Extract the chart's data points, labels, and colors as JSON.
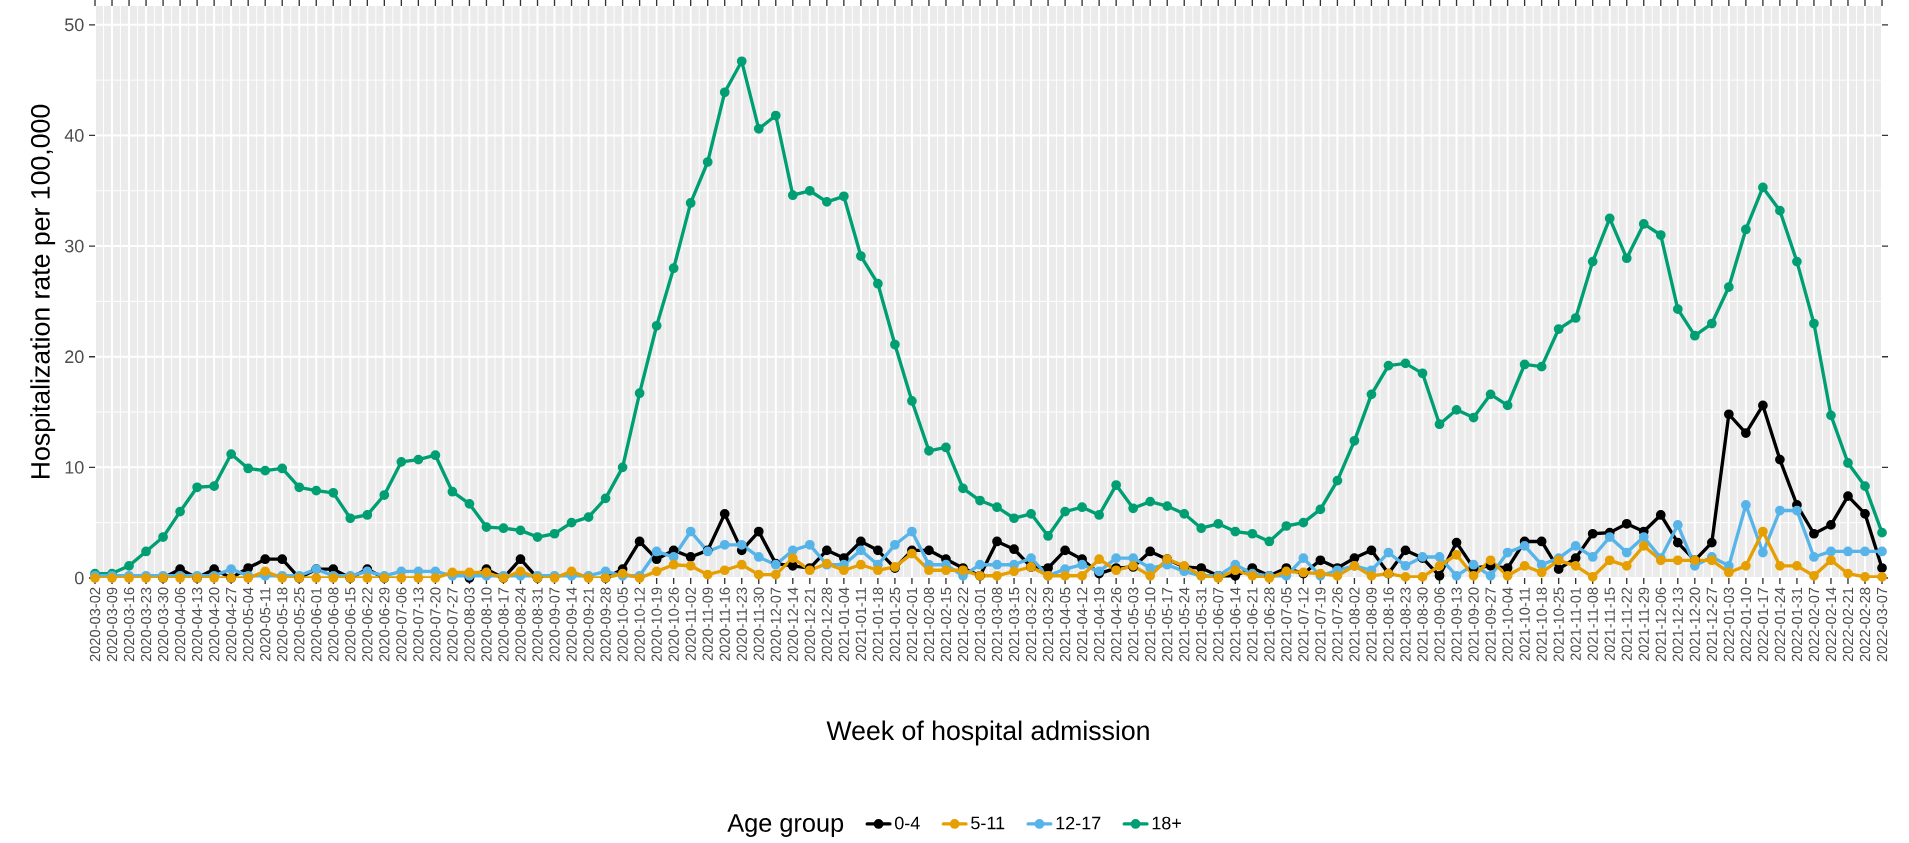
{
  "chart_data": {
    "type": "line",
    "xlabel": "Week of hospital admission",
    "ylabel": "Hospitalization rate per 100,000",
    "legend_title": "Age group",
    "categories": [
      "2020-03-02",
      "2020-03-09",
      "2020-03-16",
      "2020-03-23",
      "2020-03-30",
      "2020-04-06",
      "2020-04-13",
      "2020-04-20",
      "2020-04-27",
      "2020-05-04",
      "2020-05-11",
      "2020-05-18",
      "2020-05-25",
      "2020-06-01",
      "2020-06-08",
      "2020-06-15",
      "2020-06-22",
      "2020-06-29",
      "2020-07-06",
      "2020-07-13",
      "2020-07-20",
      "2020-07-27",
      "2020-08-03",
      "2020-08-10",
      "2020-08-17",
      "2020-08-24",
      "2020-08-31",
      "2020-09-07",
      "2020-09-14",
      "2020-09-21",
      "2020-09-28",
      "2020-10-05",
      "2020-10-12",
      "2020-10-19",
      "2020-10-26",
      "2020-11-02",
      "2020-11-09",
      "2020-11-16",
      "2020-11-23",
      "2020-11-30",
      "2020-12-07",
      "2020-12-14",
      "2020-12-21",
      "2020-12-28",
      "2021-01-04",
      "2021-01-11",
      "2021-01-18",
      "2021-01-25",
      "2021-02-01",
      "2021-02-08",
      "2021-02-15",
      "2021-02-22",
      "2021-03-01",
      "2021-03-08",
      "2021-03-15",
      "2021-03-22",
      "2021-03-29",
      "2021-04-05",
      "2021-04-12",
      "2021-04-19",
      "2021-04-26",
      "2021-05-03",
      "2021-05-10",
      "2021-05-17",
      "2021-05-24",
      "2021-05-31",
      "2021-06-07",
      "2021-06-14",
      "2021-06-21",
      "2021-06-28",
      "2021-07-05",
      "2021-07-12",
      "2021-07-19",
      "2021-07-26",
      "2021-08-02",
      "2021-08-09",
      "2021-08-16",
      "2021-08-23",
      "2021-08-30",
      "2021-09-06",
      "2021-09-13",
      "2021-09-20",
      "2021-09-27",
      "2021-10-04",
      "2021-10-11",
      "2021-10-18",
      "2021-10-25",
      "2021-11-01",
      "2021-11-08",
      "2021-11-15",
      "2021-11-22",
      "2021-11-29",
      "2021-12-06",
      "2021-12-13",
      "2021-12-20",
      "2021-12-27",
      "2022-01-03",
      "2022-01-10",
      "2022-01-17",
      "2022-01-24",
      "2022-01-31",
      "2022-02-07",
      "2022-02-14",
      "2022-02-21",
      "2022-02-28",
      "2022-03-07"
    ],
    "series": [
      {
        "name": "0-4",
        "color": "#000000",
        "values": [
          null,
          null,
          null,
          null,
          0,
          0.8,
          0,
          0.8,
          0,
          0.9,
          1.7,
          1.7,
          0,
          0.8,
          0.8,
          0,
          0.8,
          0,
          null,
          null,
          null,
          null,
          0,
          0.8,
          0,
          1.7,
          0,
          null,
          null,
          null,
          0,
          0.8,
          3.3,
          1.7,
          2.5,
          1.9,
          2.5,
          5.8,
          2.5,
          4.2,
          1.3,
          1.1,
          0.9,
          2.5,
          1.8,
          3.3,
          2.5,
          0.9,
          2.5,
          2.5,
          1.7,
          0.9,
          0.2,
          3.3,
          2.6,
          1.0,
          0.9,
          2.5,
          1.7,
          0.4,
          0.9,
          1.0,
          2.4,
          1.7,
          1.0,
          0.9,
          0.2,
          0.2,
          0.9,
          0.2,
          0.9,
          0.4,
          1.6,
          0.9,
          1.8,
          2.5,
          0.4,
          2.5,
          1.8,
          0.2,
          3.2,
          0.9,
          1.1,
          0.9,
          3.3,
          3.3,
          0.8,
          1.8,
          4.0,
          4.1,
          4.9,
          4.2,
          5.7,
          3.2,
          1.6,
          3.2,
          14.8,
          13.1,
          15.6,
          10.7,
          6.6,
          4.0,
          4.8,
          7.4,
          5.8,
          0.9
        ]
      },
      {
        "name": "5-11",
        "color": "#E69F00",
        "values": [
          0,
          0,
          0,
          0,
          0,
          0,
          0,
          0,
          0,
          0,
          0.6,
          0,
          0,
          0,
          0,
          0,
          0,
          0,
          0,
          0,
          0,
          0.5,
          0.5,
          0.5,
          0,
          0.6,
          0,
          0,
          0.6,
          0,
          0,
          0.4,
          0,
          0.6,
          1.2,
          1.1,
          0.3,
          0.7,
          1.2,
          0.3,
          0.3,
          1.8,
          0.7,
          1.3,
          0.7,
          1.2,
          0.7,
          1.0,
          2.2,
          0.7,
          0.7,
          0.7,
          0.2,
          0.2,
          0.6,
          1.0,
          0.2,
          0.2,
          0.2,
          1.7,
          0.7,
          1.1,
          0.2,
          1.7,
          1.1,
          0.2,
          0,
          0.7,
          0.2,
          0,
          0.6,
          0.5,
          0.4,
          0.2,
          1.1,
          0.2,
          0.4,
          0.1,
          0.1,
          1.1,
          2.1,
          0.2,
          1.6,
          0.2,
          1.1,
          0.5,
          1.6,
          1.1,
          0.1,
          1.6,
          1.1,
          2.9,
          1.6,
          1.6,
          1.6,
          1.6,
          0.5,
          1.1,
          4.2,
          1.1,
          1.1,
          0.2,
          1.6,
          0.4,
          0.1,
          0.1
        ]
      },
      {
        "name": "12-17",
        "color": "#56B4E9",
        "values": [
          0.2,
          0.2,
          0.2,
          0.2,
          0.2,
          0.2,
          0.2,
          0.2,
          0.8,
          0.2,
          0.2,
          0.2,
          0.2,
          0.8,
          0.2,
          0.2,
          0.6,
          0.2,
          0.6,
          0.6,
          0.6,
          0.2,
          0.2,
          0.2,
          0.2,
          0.2,
          0.2,
          0.2,
          0.2,
          0.2,
          0.6,
          0.2,
          0.2,
          2.4,
          1.9,
          4.2,
          2.4,
          3.0,
          3.0,
          1.9,
          1.2,
          2.5,
          3.0,
          1.2,
          1.2,
          2.5,
          1.2,
          3.0,
          4.2,
          1.2,
          1.2,
          0.2,
          1.2,
          1.2,
          1.2,
          1.8,
          0.2,
          0.8,
          1.2,
          0.6,
          1.8,
          1.8,
          0.9,
          1.2,
          0.6,
          0.2,
          0.2,
          1.2,
          0.4,
          0.2,
          0.2,
          1.8,
          0.2,
          0.7,
          1.1,
          0.7,
          2.3,
          1.1,
          1.9,
          1.9,
          0.2,
          1.2,
          0.2,
          2.3,
          2.9,
          1.2,
          1.8,
          2.9,
          1.9,
          3.7,
          2.3,
          3.7,
          1.8,
          4.8,
          1.1,
          1.9,
          1.1,
          6.6,
          2.3,
          6.1,
          6.1,
          1.9,
          2.4,
          2.4,
          2.4,
          2.4
        ]
      },
      {
        "name": "18+",
        "color": "#009E73",
        "values": [
          0.4,
          0.4,
          1.1,
          2.4,
          3.7,
          6.0,
          8.2,
          8.3,
          11.2,
          9.9,
          9.7,
          9.9,
          8.2,
          7.9,
          7.7,
          5.4,
          5.7,
          7.5,
          10.5,
          10.7,
          11.1,
          7.8,
          6.7,
          4.6,
          4.5,
          4.3,
          3.7,
          4.0,
          5.0,
          5.5,
          7.2,
          10.0,
          16.7,
          22.8,
          28.0,
          33.9,
          37.6,
          43.9,
          46.7,
          40.6,
          41.8,
          34.6,
          35.0,
          34.0,
          34.5,
          29.1,
          26.6,
          21.1,
          16.0,
          11.5,
          11.8,
          8.1,
          7.0,
          6.4,
          5.4,
          5.8,
          3.8,
          6.0,
          6.4,
          5.7,
          8.4,
          6.3,
          6.9,
          6.5,
          5.8,
          4.5,
          4.9,
          4.2,
          4.0,
          3.3,
          4.7,
          5.0,
          6.2,
          8.8,
          12.4,
          16.6,
          19.2,
          19.4,
          18.5,
          13.9,
          15.2,
          14.5,
          16.6,
          15.6,
          19.3,
          19.1,
          22.5,
          23.5,
          28.6,
          32.5,
          28.9,
          32.0,
          31.0,
          24.3,
          21.9,
          23.0,
          26.3,
          31.5,
          35.3,
          33.2,
          28.6,
          23.0,
          14.7,
          10.4,
          8.3,
          4.1
        ]
      }
    ],
    "ylim": [
      0,
      51.7
    ],
    "yticks": [
      0,
      10,
      20,
      30,
      40,
      50
    ],
    "grid": true,
    "legend": "bottom",
    "marker": "circle",
    "line_style": "solid"
  }
}
